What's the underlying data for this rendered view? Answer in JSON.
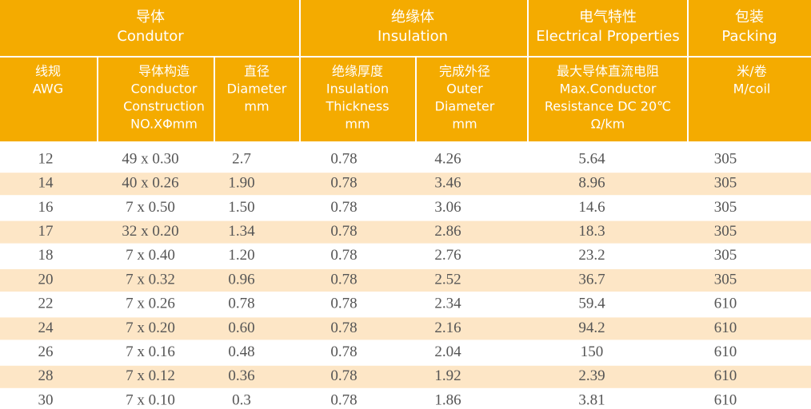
{
  "table": {
    "groups": [
      {
        "lines": [
          "导体",
          "Condutor"
        ]
      },
      {
        "lines": [
          "绝缘体",
          "Insulation"
        ]
      },
      {
        "lines": [
          "电气特性",
          "Electrical Properties"
        ]
      },
      {
        "lines": [
          "包装",
          "Packing"
        ]
      }
    ],
    "columns": [
      {
        "lines": [
          "线规",
          "AWG"
        ]
      },
      {
        "lines": [
          "导体构造",
          "Conductor",
          "Construction",
          "NO.XΦmm"
        ]
      },
      {
        "lines": [
          "直径",
          "Diameter",
          "mm"
        ]
      },
      {
        "lines": [
          "绝缘厚度",
          "Insulation",
          "Thickness",
          "mm"
        ]
      },
      {
        "lines": [
          "完成外径",
          "Outer",
          "Diameter",
          "mm"
        ]
      },
      {
        "lines": [
          "最大导体直流电阻",
          "Max.Conductor",
          "Resistance DC 20℃",
          "Ω/km"
        ]
      },
      {
        "lines": [
          "米/卷",
          "M/coil"
        ]
      }
    ],
    "rows": [
      [
        "12",
        "49 x 0.30",
        "2.7",
        "0.78",
        "4.26",
        "5.64",
        "305"
      ],
      [
        "14",
        "40 x 0.26",
        "1.90",
        "0.78",
        "3.46",
        "8.96",
        "305"
      ],
      [
        "16",
        "7 x 0.50",
        "1.50",
        "0.78",
        "3.06",
        "14.6",
        "305"
      ],
      [
        "17",
        "32 x 0.20",
        "1.34",
        "0.78",
        "2.86",
        "18.3",
        "305"
      ],
      [
        "18",
        "7 x 0.40",
        "1.20",
        "0.78",
        "2.76",
        "23.2",
        "305"
      ],
      [
        "20",
        "7 x 0.32",
        "0.96",
        "0.78",
        "2.52",
        "36.7",
        "305"
      ],
      [
        "22",
        "7 x 0.26",
        "0.78",
        "0.78",
        "2.34",
        "59.4",
        "610"
      ],
      [
        "24",
        "7 x 0.20",
        "0.60",
        "0.78",
        "2.16",
        "94.2",
        "610"
      ],
      [
        "26",
        "7 x 0.16",
        "0.48",
        "0.78",
        "2.04",
        "150",
        "610"
      ],
      [
        "28",
        "7 x 0.12",
        "0.36",
        "0.78",
        "1.92",
        "2.39",
        "610"
      ],
      [
        "30",
        "7 x 0.10",
        "0.3",
        "0.78",
        "1.86",
        "3.81",
        "610"
      ]
    ]
  }
}
